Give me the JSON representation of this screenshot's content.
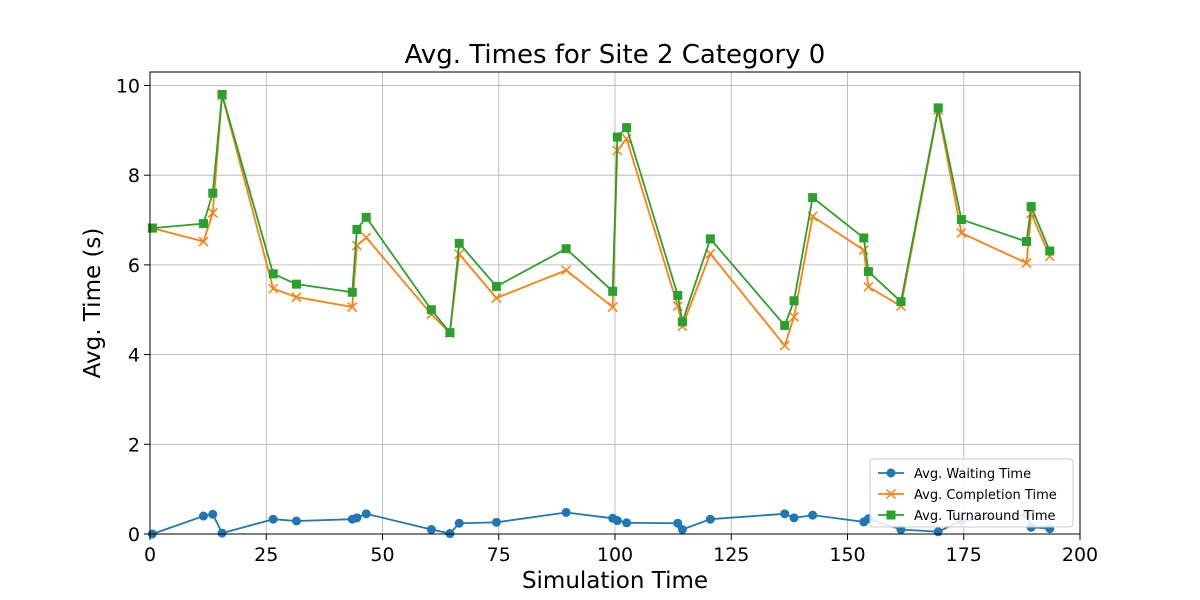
{
  "chart_data": {
    "type": "line",
    "title": "Avg. Times for Site 2 Category 0",
    "xlabel": "Simulation Time",
    "ylabel": "Avg. Time (s)",
    "xlim": [
      0,
      200
    ],
    "ylim": [
      0,
      10.3
    ],
    "xticks": [
      0,
      25,
      50,
      75,
      100,
      125,
      150,
      175,
      200
    ],
    "yticks": [
      0,
      2,
      4,
      6,
      8,
      10
    ],
    "grid": true,
    "legend_position": "bottom-right",
    "x": [
      0.5,
      11.5,
      13.5,
      15.5,
      26.5,
      31.5,
      43.5,
      44.5,
      46.5,
      60.5,
      64.5,
      66.5,
      74.5,
      89.5,
      99.5,
      100.5,
      102.5,
      113.5,
      114.5,
      120.5,
      136.5,
      138.5,
      142.5,
      153.5,
      154.5,
      161.5,
      169.5,
      174.5,
      188.5,
      189.5,
      193.5
    ],
    "series": [
      {
        "name": "Avg. Waiting Time",
        "color": "#1f77b4",
        "marker": "circle",
        "values": [
          0.0,
          0.4,
          0.44,
          0.02,
          0.33,
          0.29,
          0.33,
          0.36,
          0.45,
          0.1,
          0.01,
          0.24,
          0.26,
          0.48,
          0.35,
          0.3,
          0.25,
          0.24,
          0.1,
          0.33,
          0.45,
          0.36,
          0.42,
          0.27,
          0.34,
          0.1,
          0.05,
          0.3,
          0.43,
          0.15,
          0.12
        ]
      },
      {
        "name": "Avg. Completion Time",
        "color": "#ff7f0e",
        "marker": "x",
        "values": [
          6.82,
          6.52,
          7.16,
          9.78,
          5.47,
          5.28,
          5.06,
          6.43,
          6.61,
          4.9,
          4.48,
          6.24,
          5.26,
          5.88,
          5.06,
          8.55,
          8.81,
          5.08,
          4.63,
          6.25,
          4.2,
          4.84,
          7.08,
          6.33,
          5.51,
          5.08,
          9.45,
          6.71,
          6.04,
          7.15,
          6.19
        ]
      },
      {
        "name": "Avg. Turnaround Time",
        "color": "#2ca02c",
        "marker": "square",
        "values": [
          6.82,
          6.92,
          7.6,
          9.8,
          5.8,
          5.57,
          5.39,
          6.79,
          7.06,
          5.0,
          4.49,
          6.48,
          5.52,
          6.36,
          5.41,
          8.85,
          9.06,
          5.32,
          4.73,
          6.58,
          4.65,
          5.2,
          7.5,
          6.6,
          5.85,
          5.18,
          9.5,
          7.01,
          6.52,
          7.3,
          6.31
        ]
      }
    ]
  }
}
